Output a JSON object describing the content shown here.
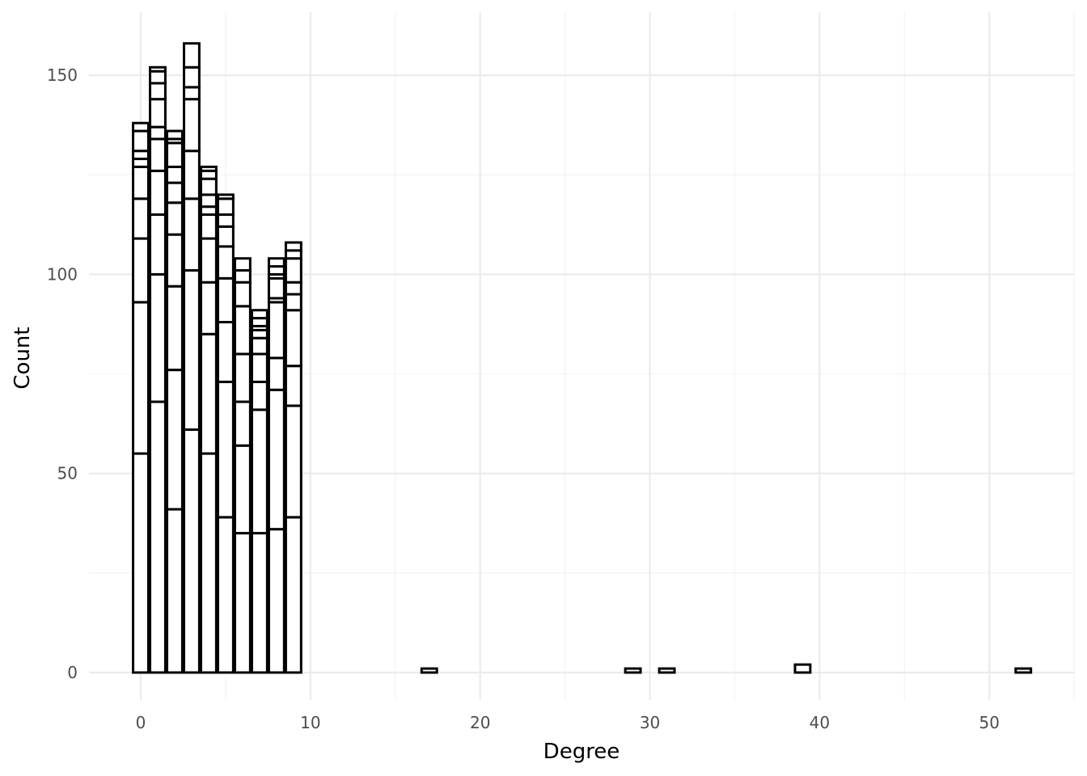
{
  "chart_data": {
    "type": "bar",
    "subtype": "stacked-histogram",
    "title": "",
    "xlabel": "Degree",
    "ylabel": "Count",
    "xlim": [
      -3,
      55
    ],
    "ylim": [
      -9,
      165
    ],
    "x_ticks": [
      0,
      10,
      20,
      30,
      40,
      50
    ],
    "y_ticks": [
      0,
      50,
      100,
      150
    ],
    "grid": true,
    "legend": "none",
    "bar_fill": "#ffffff",
    "bar_outline": "#000000",
    "bins": [
      {
        "x": 0,
        "boundaries": [
          0,
          55,
          93,
          109,
          119,
          127,
          129,
          131,
          136,
          138
        ]
      },
      {
        "x": 1,
        "boundaries": [
          0,
          68,
          100,
          115,
          126,
          134,
          137,
          144,
          148,
          151,
          152
        ]
      },
      {
        "x": 2,
        "boundaries": [
          0,
          41,
          76,
          97,
          110,
          118,
          123,
          127,
          133,
          134,
          136
        ]
      },
      {
        "x": 3,
        "boundaries": [
          0,
          61,
          101,
          119,
          131,
          144,
          147,
          152,
          158
        ]
      },
      {
        "x": 4,
        "boundaries": [
          0,
          55,
          85,
          98,
          109,
          115,
          117,
          120,
          124,
          126,
          127
        ]
      },
      {
        "x": 5,
        "boundaries": [
          0,
          39,
          73,
          88,
          99,
          107,
          112,
          115,
          119,
          120
        ]
      },
      {
        "x": 6,
        "boundaries": [
          0,
          35,
          57,
          68,
          80,
          92,
          98,
          101,
          104
        ]
      },
      {
        "x": 7,
        "boundaries": [
          0,
          35,
          66,
          73,
          80,
          84,
          86,
          87,
          89,
          91
        ]
      },
      {
        "x": 8,
        "boundaries": [
          0,
          36,
          71,
          79,
          93,
          94,
          99,
          100,
          102,
          104
        ]
      },
      {
        "x": 9,
        "boundaries": [
          0,
          39,
          67,
          77,
          91,
          95,
          98,
          104,
          106,
          108
        ]
      },
      {
        "x": 17,
        "boundaries": [
          0,
          1
        ]
      },
      {
        "x": 29,
        "boundaries": [
          0,
          1
        ]
      },
      {
        "x": 31,
        "boundaries": [
          0,
          1
        ]
      },
      {
        "x": 39,
        "boundaries": [
          0,
          2
        ]
      },
      {
        "x": 52,
        "boundaries": [
          0,
          1
        ]
      }
    ]
  }
}
